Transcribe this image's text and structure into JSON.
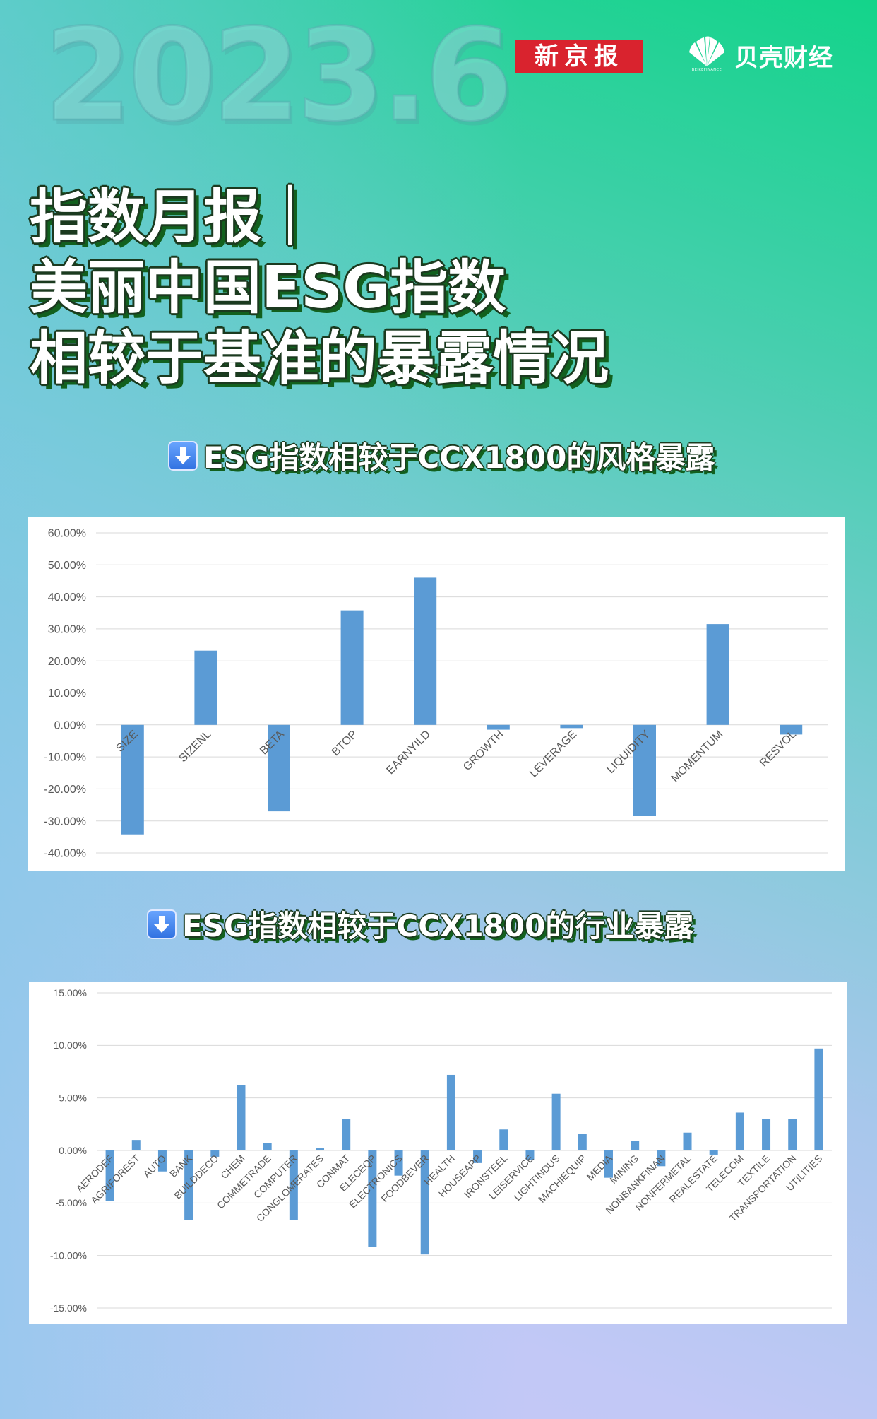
{
  "header": {
    "date": "2023.6",
    "brand_xjb": "新京报",
    "brand_bk": "贝壳财经",
    "brand_bk_sub": "BEIKEFINANCE"
  },
  "headline": {
    "line1": "指数月报｜",
    "line2": "美丽中国ESG指数",
    "line3": "相较于基准的暴露情况"
  },
  "colors": {
    "bar": "#5b9bd5",
    "grid": "#d9d9d9",
    "axis_text": "#595959"
  },
  "sections": [
    {
      "icon": "down-arrow-icon",
      "title": "ESG指数相较于CCX1800的风格暴露"
    },
    {
      "icon": "down-arrow-icon",
      "title": "ESG指数相较于CCX1800的行业暴露"
    }
  ],
  "chart_data": [
    {
      "type": "bar",
      "categories": [
        "SIZE",
        "SIZENL",
        "BETA",
        "BTOP",
        "EARNYILD",
        "GROWTH",
        "LEVERAGE",
        "LIQUIDITY",
        "MOMENTUM",
        "RESVOL"
      ],
      "values": [
        -34.2,
        23.2,
        -27.0,
        35.8,
        46.0,
        -1.5,
        -1.0,
        -28.5,
        31.5,
        -3.0
      ],
      "ylim": [
        -40,
        60
      ],
      "yticks": [
        60,
        50,
        40,
        30,
        20,
        10,
        0,
        -10,
        -20,
        -30,
        -40
      ],
      "ytick_labels": [
        "60.00%",
        "50.00%",
        "40.00%",
        "30.00%",
        "20.00%",
        "10.00%",
        "0.00%",
        "-10.00%",
        "-20.00%",
        "-30.00%",
        "-40.00%"
      ],
      "grid": true,
      "legend": "none"
    },
    {
      "type": "bar",
      "categories": [
        "AERODEF",
        "AGRIFOREST",
        "AUTO",
        "BANK",
        "BUILDDECO",
        "CHEM",
        "COMMETRADE",
        "COMPUTER",
        "CONGLOMERATES",
        "CONMAT",
        "ELECEQP",
        "ELECTRONICS",
        "FOODBEVER",
        "HEALTH",
        "HOUSEAPP",
        "IRONSTEEL",
        "LEISERVICE",
        "LIGHTINDUS",
        "MACHIEQUIP",
        "MEDIA",
        "MINING",
        "NONBANKFINAN",
        "NONFERMETAL",
        "REALESTATE",
        "TELECOM",
        "TEXTILE",
        "TRANSPORTATION",
        "UTILITIES"
      ],
      "values": [
        -4.8,
        1.0,
        -2.0,
        -6.6,
        -0.6,
        6.2,
        0.7,
        -6.6,
        0.2,
        3.0,
        -9.2,
        -2.4,
        -9.9,
        7.2,
        -1.2,
        2.0,
        -0.9,
        5.4,
        1.6,
        -2.6,
        0.9,
        -1.5,
        1.7,
        -0.4,
        3.6,
        3.0,
        3.0,
        9.7
      ],
      "ylim": [
        -15,
        15
      ],
      "yticks": [
        15,
        10,
        5,
        0,
        -5,
        -10,
        -15
      ],
      "ytick_labels": [
        "15.00%",
        "10.00%",
        "5.00%",
        "0.00%",
        "-5.00%",
        "-10.00%",
        "-15.00%"
      ],
      "grid": true,
      "legend": "none"
    }
  ]
}
